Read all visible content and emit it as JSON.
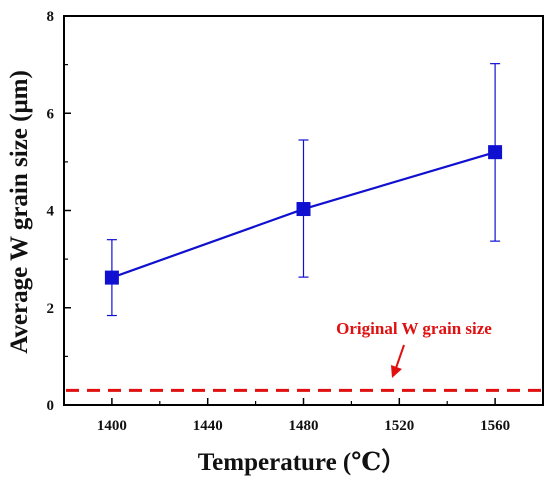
{
  "chart_data": {
    "type": "line",
    "xlabel": "Temperature (℃）",
    "ylabel": "Average W grain size (μm)",
    "xlim": [
      1380,
      1580
    ],
    "ylim": [
      0,
      8
    ],
    "x_ticks": [
      "1400",
      "1440",
      "1480",
      "1520",
      "1560"
    ],
    "y_ticks": [
      "0",
      "2",
      "4",
      "6",
      "8"
    ],
    "grid": false,
    "series": [
      {
        "x": [
          1400,
          1480,
          1560
        ],
        "y": [
          2.62,
          4.03,
          5.2
        ],
        "y_err_low": [
          1.84,
          2.63,
          3.37
        ],
        "y_err_high": [
          3.4,
          5.45,
          7.02
        ],
        "color": "#1010d0",
        "marker": "square"
      }
    ],
    "reference_line": {
      "y": 0.3,
      "style": "dashed",
      "color": "#e01010",
      "label": "Original W grain size"
    }
  }
}
